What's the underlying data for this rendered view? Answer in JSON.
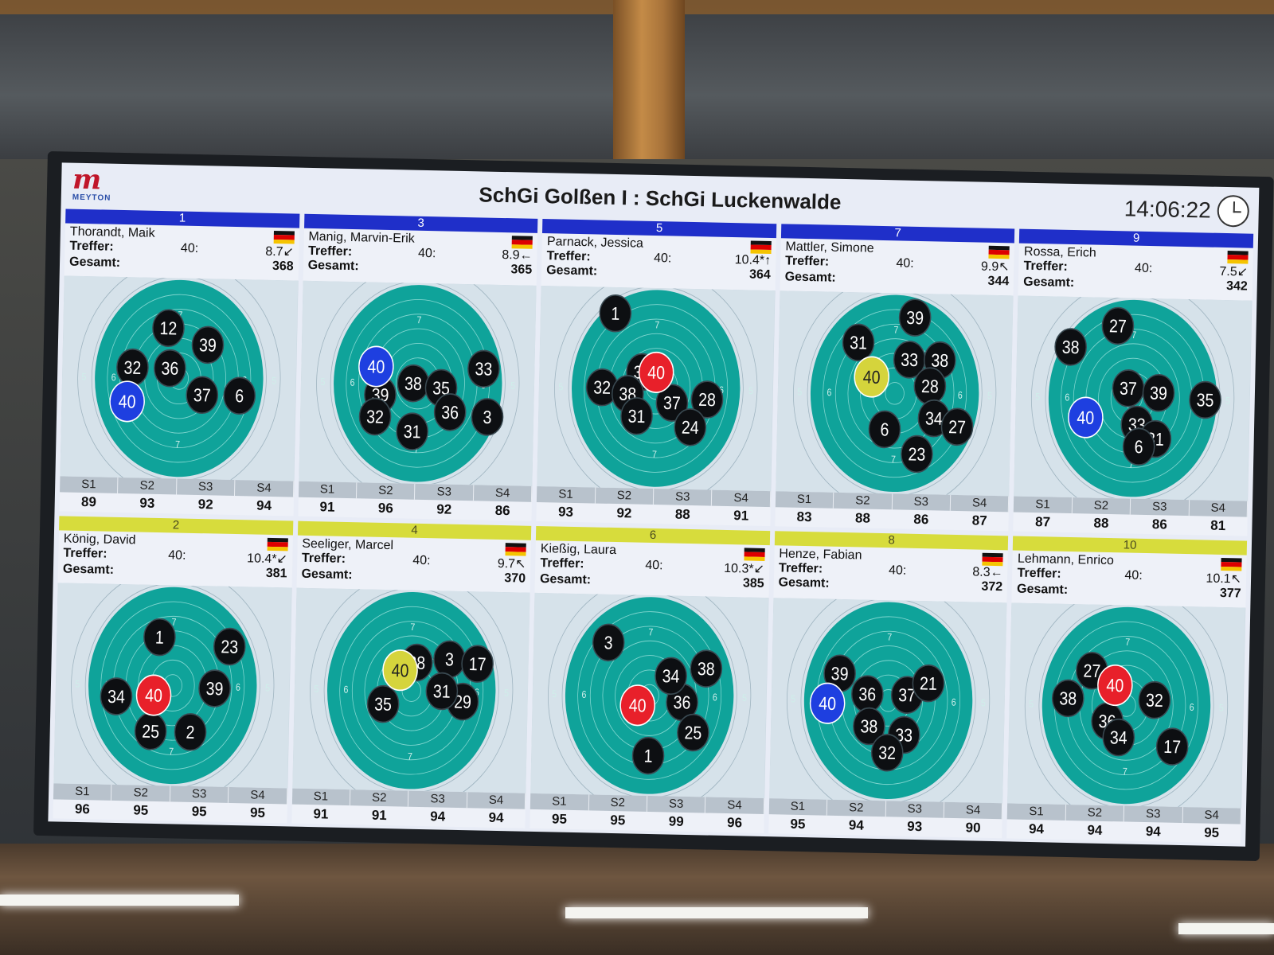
{
  "header": {
    "logo_text": "MEYTON",
    "match_title": "SchGi Golßen I : SchGi Luckenwalde",
    "time": "14:06:22"
  },
  "labels": {
    "hits": "Treffer:",
    "total": "Gesamt:",
    "shots": "40:"
  },
  "series_labels": [
    "S1",
    "S2",
    "S3",
    "S4"
  ],
  "colors": {
    "blue_lane": "#1f2fc9",
    "yellow_lane": "#d7dc3c",
    "target": "#0fa39a",
    "hit_red": "#e8202a",
    "hit_blue": "#1e3fe0",
    "hit_yellow": "#d5d43c"
  },
  "lanes": [
    {
      "number": "1",
      "color": "blue",
      "name": "Thorandt, Maik",
      "last_shot": "8.7↙",
      "total": "368",
      "series": [
        "89",
        "93",
        "92",
        "94"
      ],
      "last_hit": {
        "label": "40",
        "color": "blue"
      },
      "hits": [
        [
          "12",
          0.45,
          0.25
        ],
        [
          "39",
          0.62,
          0.33
        ],
        [
          "32",
          0.3,
          0.45
        ],
        [
          "36",
          0.46,
          0.45
        ],
        [
          "37",
          0.6,
          0.58
        ],
        [
          "6",
          0.76,
          0.58
        ]
      ]
    },
    {
      "number": "3",
      "color": "blue",
      "name": "Manig, Marvin-Erik",
      "last_shot": "8.9←",
      "total": "365",
      "series": [
        "91",
        "96",
        "92",
        "86"
      ],
      "last_hit": {
        "label": "40",
        "color": "blue"
      },
      "hits": [
        [
          "33",
          0.78,
          0.42
        ],
        [
          "38",
          0.48,
          0.5
        ],
        [
          "35",
          0.6,
          0.52
        ],
        [
          "39",
          0.34,
          0.56
        ],
        [
          "36",
          0.64,
          0.64
        ],
        [
          "32",
          0.32,
          0.67
        ],
        [
          "31",
          0.48,
          0.74
        ],
        [
          "3",
          0.8,
          0.66
        ]
      ]
    },
    {
      "number": "5",
      "color": "blue",
      "name": "Parnack, Jessica",
      "last_shot": "10.4*↑",
      "total": "364",
      "series": [
        "93",
        "92",
        "88",
        "91"
      ],
      "last_hit": {
        "label": "40",
        "color": "red"
      },
      "hits": [
        [
          "1",
          0.32,
          0.13
        ],
        [
          "34",
          0.44,
          0.42
        ],
        [
          "32",
          0.27,
          0.5
        ],
        [
          "38",
          0.38,
          0.53
        ],
        [
          "37",
          0.57,
          0.57
        ],
        [
          "28",
          0.72,
          0.55
        ],
        [
          "31",
          0.42,
          0.64
        ],
        [
          "24",
          0.65,
          0.69
        ]
      ]
    },
    {
      "number": "7",
      "color": "blue",
      "name": "Mattler, Simone",
      "last_shot": "9.9↖",
      "total": "344",
      "series": [
        "83",
        "88",
        "86",
        "87"
      ],
      "last_hit": {
        "label": "40",
        "color": "yellow"
      },
      "hits": [
        [
          "39",
          0.58,
          0.12
        ],
        [
          "31",
          0.34,
          0.25
        ],
        [
          "33",
          0.56,
          0.33
        ],
        [
          "38",
          0.69,
          0.33
        ],
        [
          "28",
          0.65,
          0.46
        ],
        [
          "34",
          0.67,
          0.62
        ],
        [
          "27",
          0.77,
          0.66
        ],
        [
          "6",
          0.46,
          0.68
        ],
        [
          "23",
          0.6,
          0.8
        ]
      ]
    },
    {
      "number": "9",
      "color": "blue",
      "name": "Rossa, Erich",
      "last_shot": "7.5↙",
      "total": "342",
      "series": [
        "87",
        "88",
        "86",
        "81"
      ],
      "last_hit": {
        "label": "40",
        "color": "blue"
      },
      "hits": [
        [
          "27",
          0.43,
          0.14
        ],
        [
          "38",
          0.23,
          0.25
        ],
        [
          "37",
          0.48,
          0.45
        ],
        [
          "39",
          0.61,
          0.47
        ],
        [
          "35",
          0.81,
          0.5
        ],
        [
          "33",
          0.52,
          0.63
        ],
        [
          "31",
          0.6,
          0.7
        ],
        [
          "6",
          0.53,
          0.74
        ]
      ]
    },
    {
      "number": "2",
      "color": "yellow",
      "name": "König, David",
      "last_shot": "10.4*↙",
      "total": "381",
      "series": [
        "96",
        "95",
        "95",
        "95"
      ],
      "last_hit": {
        "label": "40",
        "color": "red"
      },
      "hits": [
        [
          "1",
          0.44,
          0.26
        ],
        [
          "23",
          0.74,
          0.3
        ],
        [
          "39",
          0.68,
          0.51
        ],
        [
          "34",
          0.26,
          0.56
        ],
        [
          "25",
          0.41,
          0.73
        ],
        [
          "2",
          0.58,
          0.73
        ]
      ]
    },
    {
      "number": "4",
      "color": "yellow",
      "name": "Seeliger, Marcel",
      "last_shot": "9.7↖",
      "total": "370",
      "series": [
        "91",
        "91",
        "94",
        "94"
      ],
      "last_hit": {
        "label": "40",
        "color": "yellow"
      },
      "hits": [
        [
          "38",
          0.52,
          0.36
        ],
        [
          "3",
          0.66,
          0.34
        ],
        [
          "17",
          0.78,
          0.36
        ],
        [
          "35",
          0.38,
          0.57
        ],
        [
          "29",
          0.72,
          0.55
        ],
        [
          "31",
          0.63,
          0.5
        ]
      ]
    },
    {
      "number": "6",
      "color": "yellow",
      "name": "Kießig, Laura",
      "last_shot": "10.3*↙",
      "total": "385",
      "series": [
        "95",
        "95",
        "99",
        "96"
      ],
      "last_hit": {
        "label": "40",
        "color": "red"
      },
      "hits": [
        [
          "3",
          0.32,
          0.24
        ],
        [
          "38",
          0.74,
          0.36
        ],
        [
          "36",
          0.64,
          0.53
        ],
        [
          "25",
          0.69,
          0.68
        ],
        [
          "1",
          0.5,
          0.8
        ],
        [
          "34",
          0.59,
          0.4
        ]
      ]
    },
    {
      "number": "8",
      "color": "yellow",
      "name": "Henze, Fabian",
      "last_shot": "8.3←",
      "total": "372",
      "series": [
        "95",
        "94",
        "93",
        "90"
      ],
      "last_hit": {
        "label": "40",
        "color": "blue"
      },
      "hits": [
        [
          "39",
          0.29,
          0.37
        ],
        [
          "36",
          0.41,
          0.47
        ],
        [
          "37",
          0.58,
          0.47
        ],
        [
          "21",
          0.67,
          0.41
        ],
        [
          "38",
          0.42,
          0.63
        ],
        [
          "33",
          0.57,
          0.67
        ],
        [
          "32",
          0.5,
          0.76
        ]
      ]
    },
    {
      "number": "10",
      "color": "yellow",
      "name": "Lehmann, Enrico",
      "last_shot": "10.1↖",
      "total": "377",
      "series": [
        "94",
        "94",
        "94",
        "95"
      ],
      "last_hit": {
        "label": "40",
        "color": "red"
      },
      "hits": [
        [
          "38",
          0.25,
          0.47
        ],
        [
          "32",
          0.62,
          0.47
        ],
        [
          "36",
          0.42,
          0.58
        ],
        [
          "34",
          0.47,
          0.66
        ],
        [
          "17",
          0.7,
          0.7
        ],
        [
          "27",
          0.35,
          0.33
        ]
      ]
    }
  ]
}
